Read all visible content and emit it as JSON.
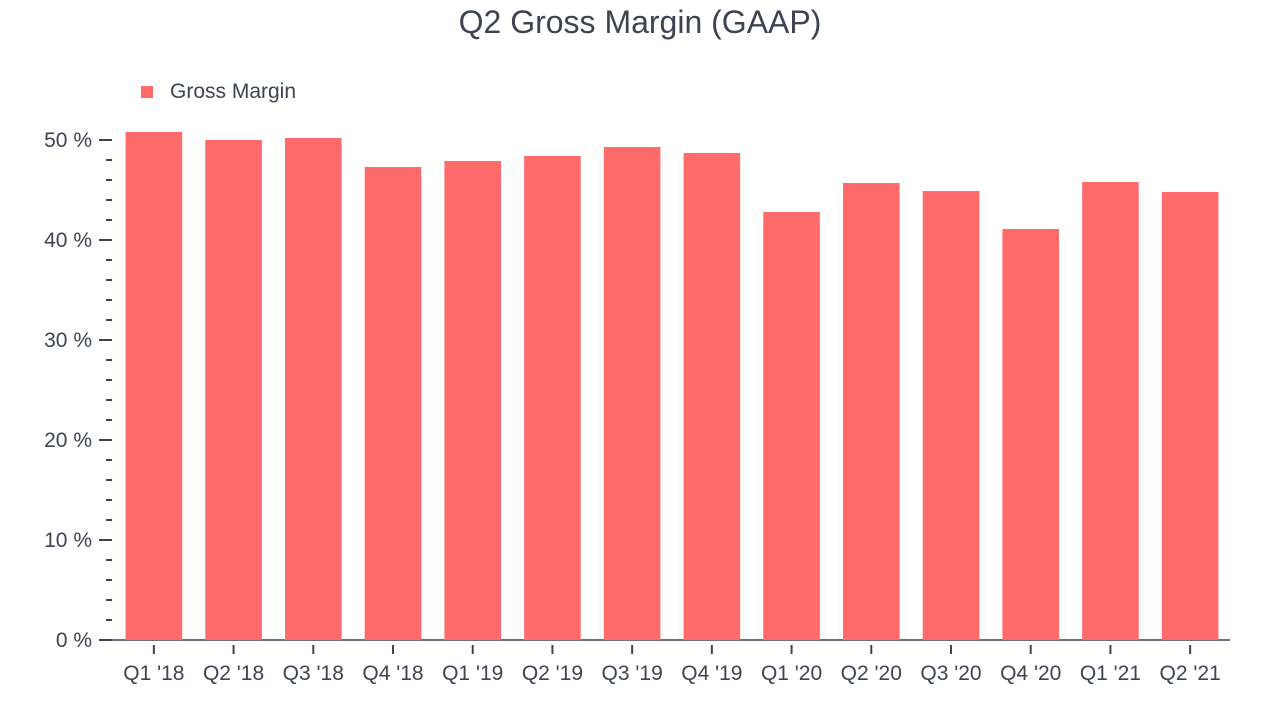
{
  "chart_data": {
    "type": "bar",
    "title": "Q2 Gross Margin (GAAP)",
    "xlabel": "",
    "ylabel": "",
    "categories": [
      "Q1 '18",
      "Q2 '18",
      "Q3 '18",
      "Q4 '18",
      "Q1 '19",
      "Q2 '19",
      "Q3 '19",
      "Q4 '19",
      "Q1 '20",
      "Q2 '20",
      "Q3 '20",
      "Q4 '20",
      "Q1 '21",
      "Q2 '21"
    ],
    "series": [
      {
        "name": "Gross Margin",
        "color": "#ff6b6b",
        "values": [
          50.8,
          50.0,
          50.2,
          47.3,
          47.9,
          48.4,
          49.3,
          48.7,
          42.8,
          45.7,
          44.9,
          41.1,
          45.8,
          44.8
        ]
      }
    ],
    "ylim": [
      0,
      50
    ],
    "yticks": [
      0,
      10,
      20,
      30,
      40,
      50
    ],
    "ytick_labels": [
      "0 %",
      "10 %",
      "20 %",
      "30 %",
      "40 %",
      "50 %"
    ],
    "grid": false,
    "legend": "top-left"
  }
}
